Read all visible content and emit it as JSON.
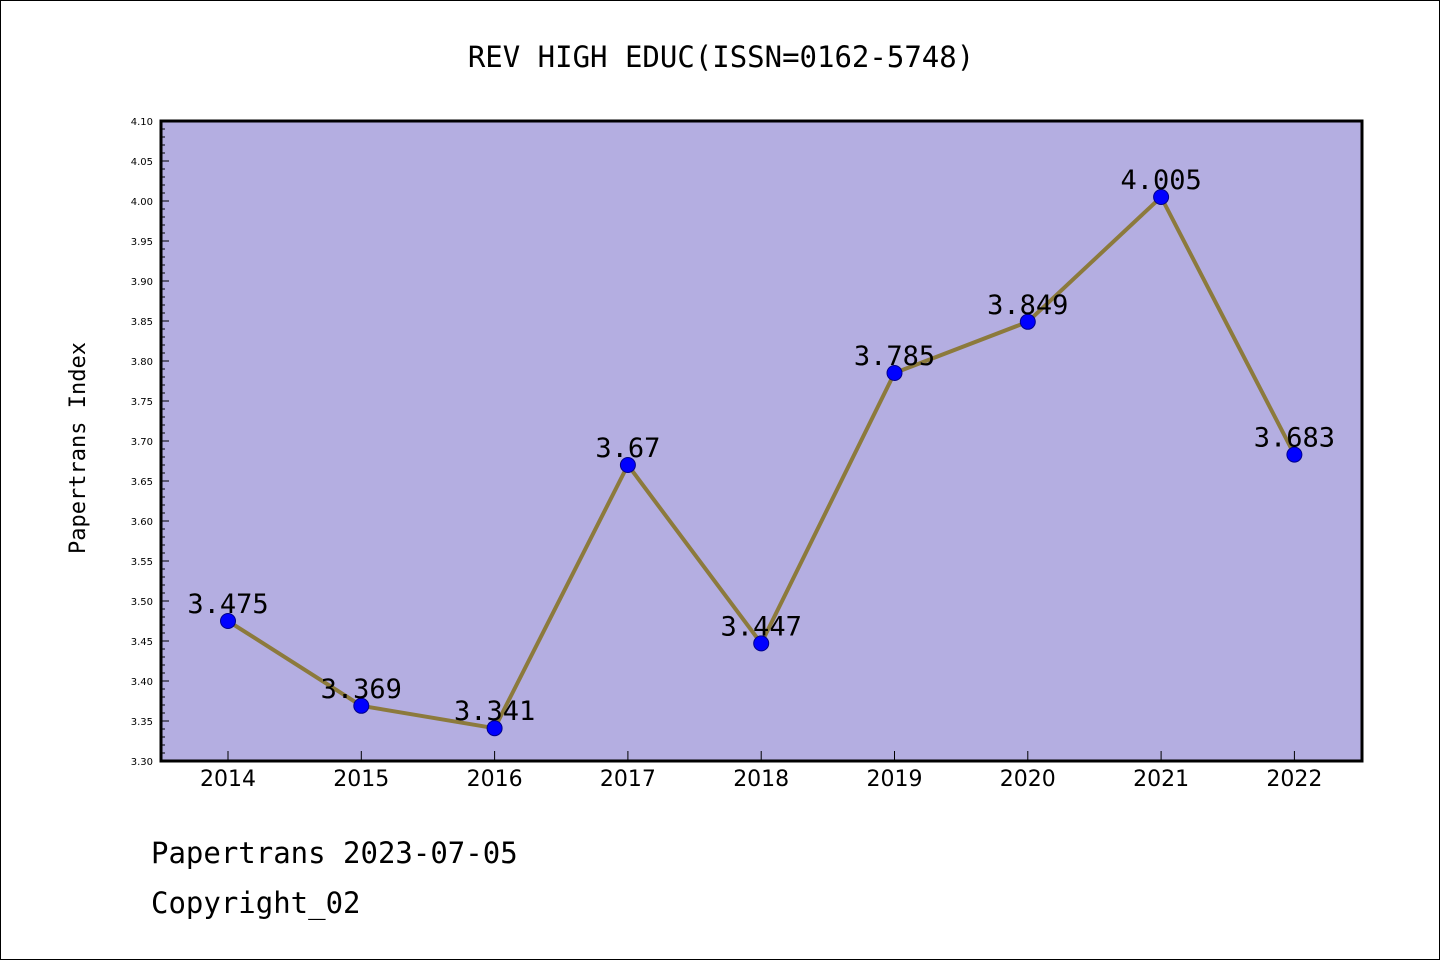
{
  "chart_data": {
    "type": "line",
    "title": "REV HIGH EDUC(ISSN=0162-5748)",
    "xlabel": "",
    "ylabel": "Papertrans Index",
    "categories": [
      "2014",
      "2015",
      "2016",
      "2017",
      "2018",
      "2019",
      "2020",
      "2021",
      "2022"
    ],
    "series": [
      {
        "values": [
          3.475,
          3.369,
          3.341,
          3.67,
          3.447,
          3.785,
          3.849,
          4.005,
          3.683
        ],
        "data_labels": [
          "3.475",
          "3.369",
          "3.341",
          "3.67",
          "3.447",
          "3.785",
          "3.849",
          "4.005",
          "3.683"
        ],
        "line_color": "#8c7a3c",
        "marker_color": "#0000ff"
      }
    ],
    "ylim": [
      3.3,
      4.1
    ],
    "yticks": [
      "3.30",
      "3.35",
      "3.40",
      "3.45",
      "3.50",
      "3.55",
      "3.60",
      "3.65",
      "3.70",
      "3.75",
      "3.80",
      "3.85",
      "3.90",
      "3.95",
      "4.00",
      "4.05",
      "4.10"
    ],
    "plot_background": "#b4aee1",
    "grid": false,
    "legend": "none"
  },
  "footer": {
    "line1": "Papertrans 2023-07-05",
    "line2": "Copyright_02"
  }
}
